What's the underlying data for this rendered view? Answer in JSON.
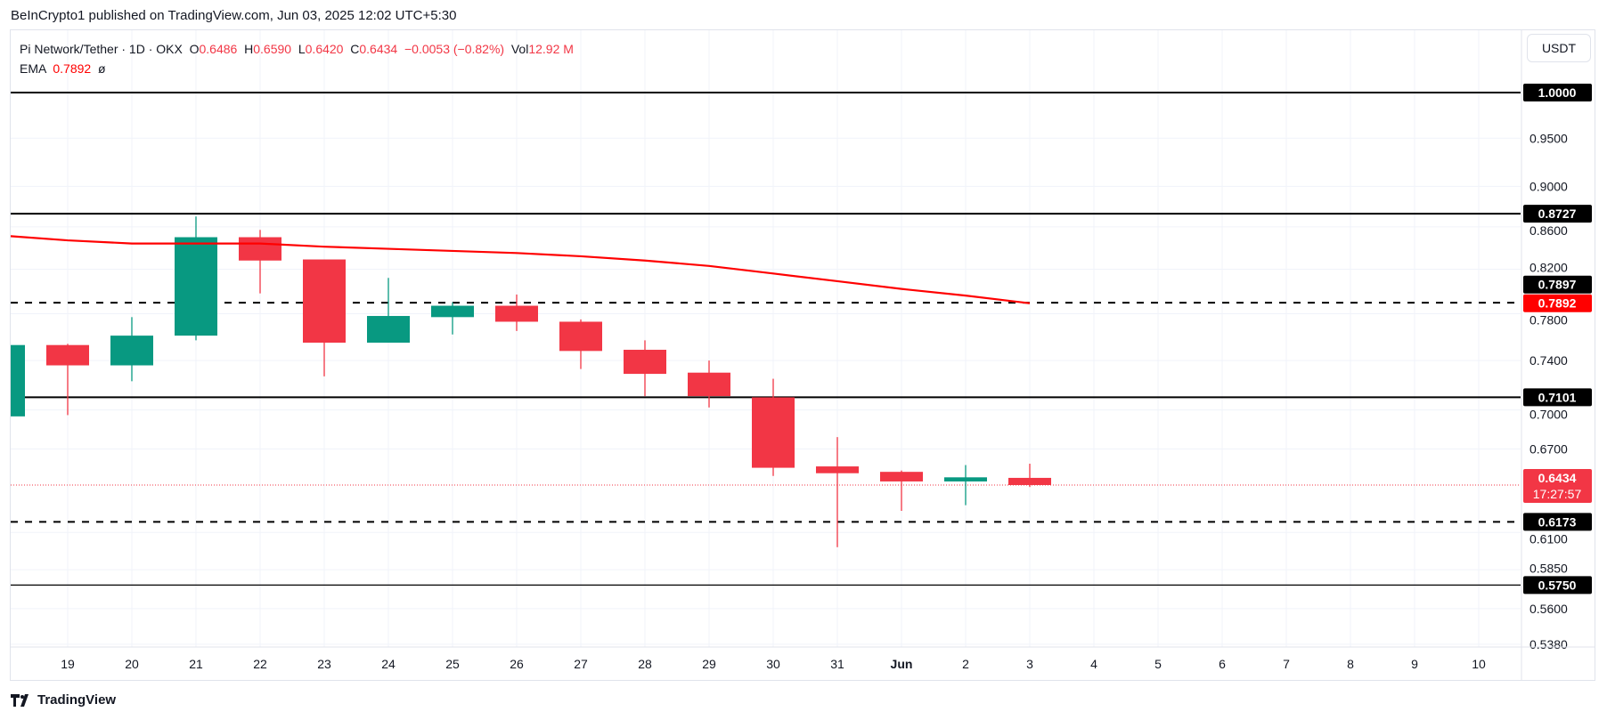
{
  "publisher": "BeInCrypto1 published on TradingView.com, Jun 03, 2025 12:02 UTC+5:30",
  "legend": {
    "symbol": "Pi Network/Tether · 1D · OKX",
    "o_label": "O",
    "o": "0.6486",
    "h_label": "H",
    "h": "0.6590",
    "l_label": "L",
    "l": "0.6420",
    "c_label": "C",
    "c": "0.6434",
    "change": "−0.0053 (−0.82%)",
    "vol_label": "Vol",
    "vol": "12.92 M",
    "ema_label": "EMA",
    "ema_value": "0.7892",
    "ema_extra": "ø"
  },
  "currency_button": "USDT",
  "brand": "TradingView",
  "colors": {
    "up": "#089981",
    "down": "#f23645",
    "ema": "#ff0000",
    "level": "#000000",
    "grid": "#f0f3fa"
  },
  "chart_data": {
    "type": "candlestick",
    "title": "Pi Network/Tether · 1D · OKX",
    "yscale": "log",
    "ylim": [
      0.528,
      1.06
    ],
    "x_labels": [
      "",
      "19",
      "20",
      "21",
      "22",
      "23",
      "24",
      "25",
      "26",
      "27",
      "28",
      "29",
      "30",
      "31",
      "Jun",
      "2",
      "3",
      "4",
      "5",
      "6",
      "7",
      "8",
      "9",
      "10"
    ],
    "y_ticks": [
      "0.9500",
      "0.9000",
      "0.8600",
      "0.8200",
      "0.7800",
      "0.7400",
      "0.7000",
      "0.6700",
      "0.6100",
      "0.5850",
      "0.5600",
      "0.5380"
    ],
    "candles": [
      {
        "d": "18",
        "o": 0.695,
        "h": 0.753,
        "l": 0.695,
        "c": 0.753
      },
      {
        "d": "19",
        "o": 0.753,
        "h": 0.754,
        "l": 0.696,
        "c": 0.736
      },
      {
        "d": "20",
        "o": 0.736,
        "h": 0.777,
        "l": 0.723,
        "c": 0.761
      },
      {
        "d": "21",
        "o": 0.761,
        "h": 0.87,
        "l": 0.757,
        "c": 0.85
      },
      {
        "d": "22",
        "o": 0.85,
        "h": 0.857,
        "l": 0.798,
        "c": 0.828
      },
      {
        "d": "23",
        "o": 0.829,
        "h": 0.829,
        "l": 0.727,
        "c": 0.755
      },
      {
        "d": "24",
        "o": 0.755,
        "h": 0.812,
        "l": 0.755,
        "c": 0.778
      },
      {
        "d": "25",
        "o": 0.777,
        "h": 0.79,
        "l": 0.762,
        "c": 0.787
      },
      {
        "d": "26",
        "o": 0.787,
        "h": 0.797,
        "l": 0.765,
        "c": 0.773
      },
      {
        "d": "27",
        "o": 0.773,
        "h": 0.775,
        "l": 0.733,
        "c": 0.748
      },
      {
        "d": "28",
        "o": 0.749,
        "h": 0.757,
        "l": 0.711,
        "c": 0.729
      },
      {
        "d": "29",
        "o": 0.73,
        "h": 0.74,
        "l": 0.702,
        "c": 0.711
      },
      {
        "d": "30",
        "o": 0.71,
        "h": 0.725,
        "l": 0.65,
        "c": 0.656
      },
      {
        "d": "31",
        "o": 0.657,
        "h": 0.679,
        "l": 0.6,
        "c": 0.652
      },
      {
        "d": "Jun 1",
        "o": 0.653,
        "h": 0.654,
        "l": 0.625,
        "c": 0.646
      },
      {
        "d": "Jun 2",
        "o": 0.646,
        "h": 0.658,
        "l": 0.629,
        "c": 0.649
      },
      {
        "d": "Jun 3",
        "o": 0.6486,
        "h": 0.659,
        "l": 0.642,
        "c": 0.6434
      }
    ],
    "ema": [
      0.851,
      0.847,
      0.844,
      0.844,
      0.844,
      0.841,
      0.839,
      0.837,
      0.835,
      0.832,
      0.828,
      0.823,
      0.816,
      0.809,
      0.802,
      0.796,
      0.7892
    ],
    "levels": [
      {
        "price": 1.0,
        "label": "1.0000",
        "style": "solid"
      },
      {
        "price": 0.8727,
        "label": "0.8727",
        "style": "solid"
      },
      {
        "price": 0.7897,
        "label": "0.7897",
        "style": "dashed"
      },
      {
        "price": 0.7101,
        "label": "0.7101",
        "style": "solid"
      },
      {
        "price": 0.6173,
        "label": "0.6173",
        "style": "dashed"
      },
      {
        "price": 0.575,
        "label": "0.5750",
        "style": "solid-thin"
      }
    ],
    "ema_tag": {
      "price": 0.7892,
      "label": "0.7892"
    },
    "last_price": {
      "price": 0.6434,
      "label": "0.6434",
      "countdown": "17:27:57"
    }
  }
}
